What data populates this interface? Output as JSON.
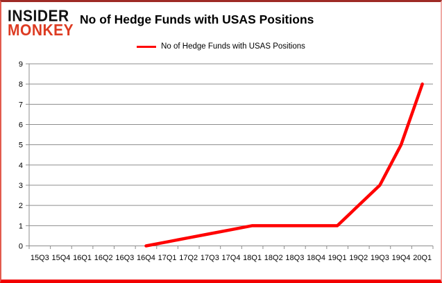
{
  "header": {
    "logo_line1": "INSIDER",
    "logo_line2": "MONKEY",
    "title": "No of Hedge Funds with USAS Positions"
  },
  "legend": {
    "label": "No of Hedge Funds with USAS Positions",
    "line_color": "#ff0000"
  },
  "chart_data": {
    "type": "line",
    "title": "No of Hedge Funds with USAS Positions",
    "xlabel": "",
    "ylabel": "",
    "categories": [
      "15Q3",
      "15Q4",
      "16Q1",
      "16Q2",
      "16Q3",
      "16Q4",
      "17Q1",
      "17Q2",
      "17Q3",
      "17Q4",
      "18Q1",
      "18Q2",
      "18Q3",
      "18Q4",
      "19Q1",
      "19Q2",
      "19Q3",
      "19Q4",
      "20Q1"
    ],
    "series": [
      {
        "name": "No of Hedge Funds with USAS Positions",
        "color": "#ff0000",
        "values": [
          null,
          null,
          null,
          null,
          null,
          0,
          0.2,
          0.4,
          0.6,
          0.8,
          1,
          1,
          1,
          1,
          1,
          2,
          3,
          5,
          8
        ],
        "key_points": [
          {
            "category": "16Q4",
            "value": 0
          },
          {
            "category": "18Q1",
            "value": 1
          },
          {
            "category": "19Q1",
            "value": 1
          },
          {
            "category": "19Q2",
            "value": 2
          },
          {
            "category": "19Q3",
            "value": 3
          },
          {
            "category": "19Q4",
            "value": 5
          },
          {
            "category": "20Q1",
            "value": 8
          }
        ]
      }
    ],
    "ylim": [
      0,
      9
    ],
    "ytick_step": 1,
    "grid": true,
    "legend_position": "top",
    "gridline_color": "#8c8c8c",
    "axis_color": "#8c8c8c"
  }
}
